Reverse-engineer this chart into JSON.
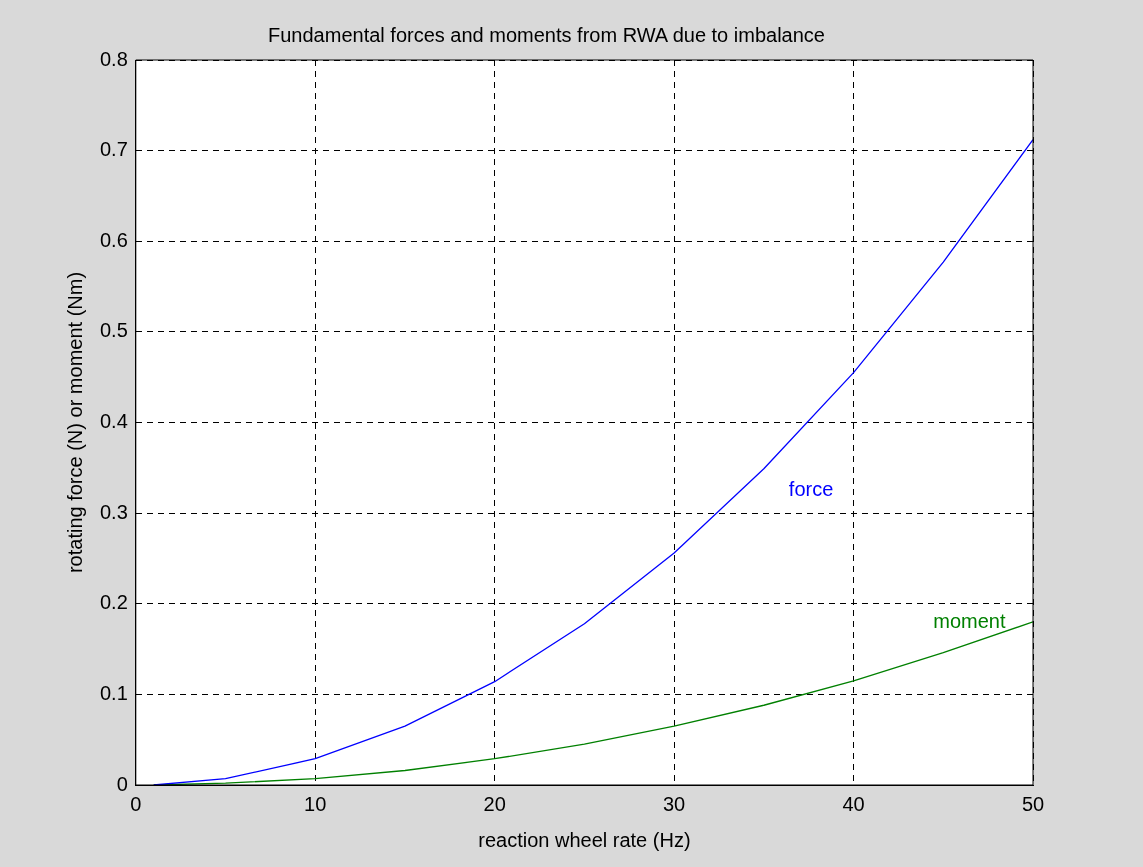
{
  "chart_data": {
    "type": "line",
    "title": "Fundamental forces and moments from RWA due to imbalance",
    "xlabel": "reaction wheel rate (Hz)",
    "ylabel": "rotating force (N) or moment (Nm)",
    "series": [
      {
        "name": "force",
        "color": "#0000ff",
        "x": [
          1,
          5,
          10,
          15,
          20,
          25,
          30,
          35,
          40,
          45,
          50
        ],
        "values": [
          0,
          0.007,
          0.029,
          0.065,
          0.114,
          0.178,
          0.256,
          0.349,
          0.455,
          0.577,
          0.712
        ]
      },
      {
        "name": "moment",
        "color": "#008000",
        "x": [
          1,
          5,
          10,
          15,
          20,
          25,
          30,
          35,
          40,
          45,
          50
        ],
        "values": [
          0,
          0.002,
          0.007,
          0.016,
          0.029,
          0.045,
          0.065,
          0.088,
          0.115,
          0.146,
          0.18
        ]
      }
    ],
    "xlim": [
      0,
      50
    ],
    "xticks": [
      0,
      10,
      20,
      30,
      40,
      50
    ],
    "ylim": [
      0,
      0.8
    ],
    "yticks": [
      0,
      0.1,
      0.2,
      0.3,
      0.4,
      0.5,
      0.6,
      0.7,
      0.8
    ],
    "grid": true,
    "legend": false,
    "marker": "none",
    "line_style": "solid"
  }
}
